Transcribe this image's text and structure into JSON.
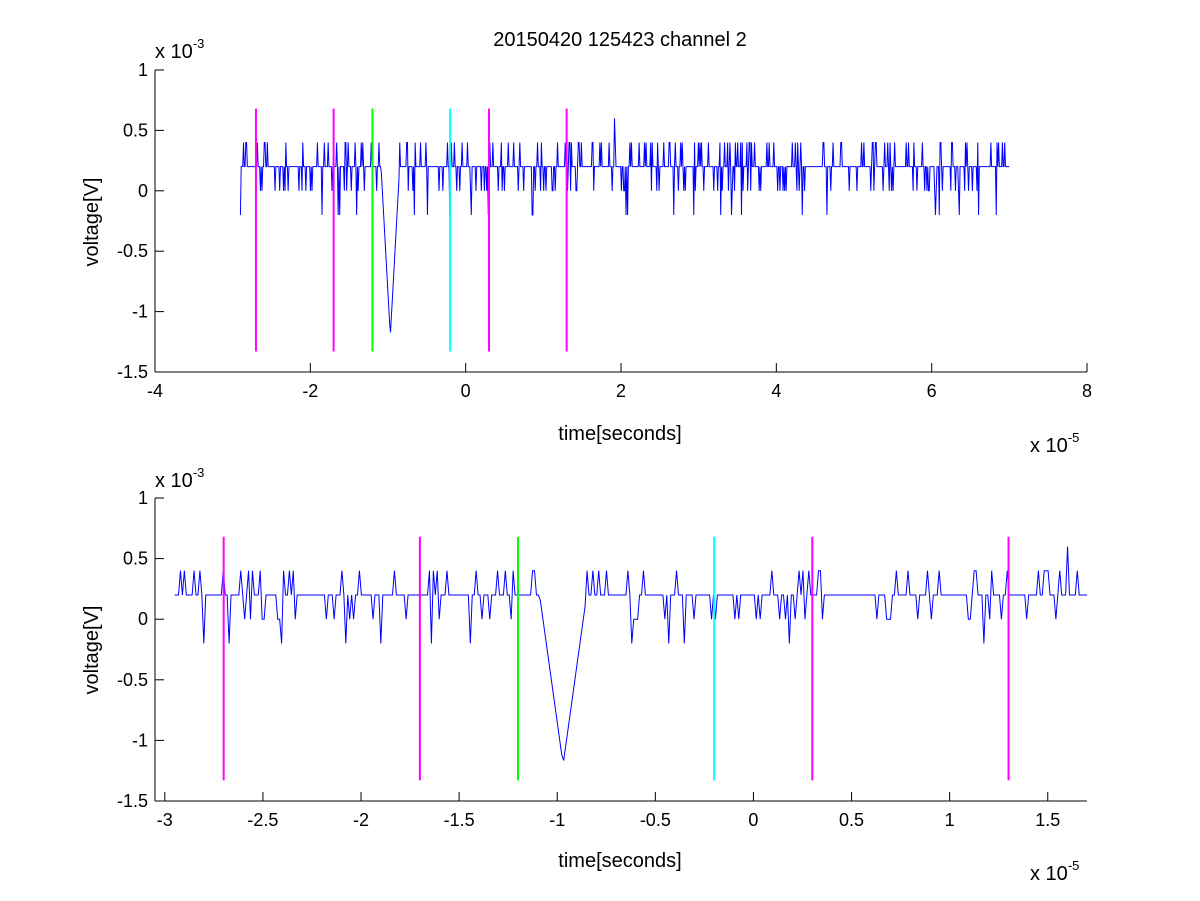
{
  "chart_data": [
    {
      "type": "line",
      "title": "20150420 125423 channel 2",
      "xlabel": "time[seconds]",
      "ylabel": "voltage[V]",
      "x_multiplier": {
        "base": "x 10",
        "exponent": "-5"
      },
      "y_multiplier": {
        "base": "x 10",
        "exponent": "-3"
      },
      "xlim": [
        -4,
        8
      ],
      "ylim": [
        -1.5,
        1
      ],
      "x_ticks": [
        "-4",
        "-2",
        "0",
        "2",
        "4",
        "6",
        "8"
      ],
      "y_ticks": [
        "-1.5",
        "-1",
        "-0.5",
        "0",
        "0.5",
        "1"
      ],
      "grid": false,
      "signal_color": "#0000ff",
      "signal": {
        "x_start": -2.9,
        "x_end": 7.0,
        "samples": 1000,
        "baseline": 0.2,
        "levels": [
          -0.2,
          0.0,
          0.2,
          0.4
        ],
        "spike": {
          "x": -0.97,
          "min": -1.2
        },
        "peak": {
          "x": 1.92,
          "max": 0.6
        }
      },
      "markers": [
        {
          "x": -2.7,
          "color": "#ff00ff",
          "y_range": [
            -1.33,
            0.68
          ]
        },
        {
          "x": -1.7,
          "color": "#ff00ff",
          "y_range": [
            -1.33,
            0.68
          ]
        },
        {
          "x": -1.2,
          "color": "#00ff00",
          "y_range": [
            -1.33,
            0.68
          ]
        },
        {
          "x": -0.2,
          "color": "#00ffff",
          "y_range": [
            -1.33,
            0.68
          ]
        },
        {
          "x": 0.3,
          "color": "#ff00ff",
          "y_range": [
            -1.33,
            0.68
          ]
        },
        {
          "x": 1.3,
          "color": "#ff00ff",
          "y_range": [
            -1.33,
            0.68
          ]
        }
      ]
    },
    {
      "type": "line",
      "xlabel": "time[seconds]",
      "ylabel": "voltage[V]",
      "x_multiplier": {
        "base": "x 10",
        "exponent": "-5"
      },
      "y_multiplier": {
        "base": "x 10",
        "exponent": "-3"
      },
      "xlim": [
        -3.05,
        1.7
      ],
      "ylim": [
        -1.5,
        1
      ],
      "x_tick_values": [
        -3,
        -2.5,
        -2,
        -1.5,
        -1,
        -0.5,
        0,
        0.5,
        1,
        1.5
      ],
      "x_ticks": [
        "-3",
        "-2.5",
        "-2",
        "-1.5",
        "-1",
        "-0.5",
        "0",
        "0.5",
        "1",
        "1.5"
      ],
      "y_ticks": [
        "-1.5",
        "-1",
        "-0.5",
        "0",
        "0.5",
        "1"
      ],
      "grid": false,
      "signal_color": "#0000ff",
      "signal": {
        "x_start": -2.95,
        "x_end": 1.7,
        "samples": 470,
        "baseline": 0.2,
        "levels": [
          -0.2,
          0.0,
          0.2,
          0.4
        ],
        "spike": {
          "x": -0.97,
          "min": -1.2
        },
        "peak": {
          "x": 1.6,
          "max": 0.6
        }
      },
      "markers": [
        {
          "x": -2.7,
          "color": "#ff00ff",
          "y_range": [
            -1.33,
            0.68
          ]
        },
        {
          "x": -1.7,
          "color": "#ff00ff",
          "y_range": [
            -1.33,
            0.68
          ]
        },
        {
          "x": -1.2,
          "color": "#00ff00",
          "y_range": [
            -1.33,
            0.68
          ]
        },
        {
          "x": -0.2,
          "color": "#00ffff",
          "y_range": [
            -1.33,
            0.68
          ]
        },
        {
          "x": 0.3,
          "color": "#ff00ff",
          "y_range": [
            -1.33,
            0.68
          ]
        },
        {
          "x": 1.3,
          "color": "#ff00ff",
          "y_range": [
            -1.33,
            0.68
          ]
        }
      ]
    }
  ]
}
